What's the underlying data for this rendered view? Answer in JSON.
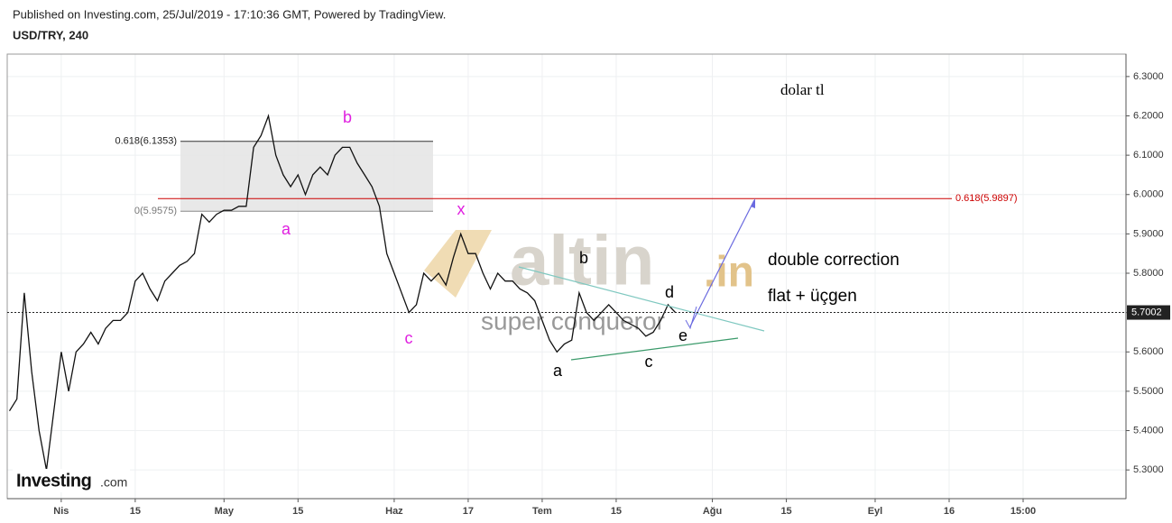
{
  "header": {
    "published": "Published on Investing.com, 25/Jul/2019 - 17:10:36 GMT, Powered by TradingView.",
    "symbol": "USD/TRY, 240"
  },
  "chart_data": {
    "type": "line",
    "color": "#111111",
    "grid": true,
    "x": [
      -7,
      -6,
      -5,
      -4,
      -3,
      -2,
      -1,
      0,
      1,
      2,
      3,
      4,
      5,
      6,
      7,
      8,
      9,
      10,
      11,
      12,
      13,
      14,
      15,
      16,
      17,
      18,
      19,
      20,
      21,
      22,
      23,
      24,
      25,
      26,
      27,
      28,
      29,
      30,
      31,
      32,
      33,
      34,
      35,
      36,
      37,
      38,
      39,
      40,
      41,
      42,
      43,
      44,
      45,
      46,
      47,
      48,
      49,
      50,
      51,
      52,
      53,
      54,
      55,
      56,
      57,
      58,
      59,
      60,
      61,
      62,
      63,
      64,
      65,
      66,
      67,
      68,
      69,
      70,
      71,
      72,
      73,
      74,
      75,
      76,
      77,
      78,
      79,
      80,
      81,
      82,
      83
    ],
    "values": [
      5.45,
      5.48,
      5.75,
      5.55,
      5.4,
      5.3,
      5.45,
      5.6,
      5.5,
      5.6,
      5.62,
      5.65,
      5.62,
      5.66,
      5.68,
      5.68,
      5.7,
      5.78,
      5.8,
      5.76,
      5.73,
      5.78,
      5.8,
      5.82,
      5.83,
      5.85,
      5.95,
      5.93,
      5.95,
      5.96,
      5.96,
      5.97,
      5.97,
      6.12,
      6.15,
      6.2,
      6.1,
      6.05,
      6.02,
      6.05,
      6.0,
      6.05,
      6.07,
      6.05,
      6.1,
      6.12,
      6.12,
      6.08,
      6.05,
      6.02,
      5.97,
      5.85,
      5.8,
      5.75,
      5.7,
      5.72,
      5.8,
      5.78,
      5.8,
      5.77,
      5.84,
      5.9,
      5.85,
      5.85,
      5.8,
      5.76,
      5.8,
      5.78,
      5.78,
      5.76,
      5.75,
      5.73,
      5.68,
      5.63,
      5.6,
      5.62,
      5.63,
      5.75,
      5.7,
      5.68,
      5.7,
      5.72,
      5.7,
      5.68,
      5.67,
      5.66,
      5.64,
      5.65,
      5.68,
      5.72,
      5.7
    ],
    "xlim": [
      -7.3,
      143.9
    ],
    "xticks": [
      {
        "value": 0,
        "label": "Nis"
      },
      {
        "value": 10,
        "label": "15"
      },
      {
        "value": 22,
        "label": "May"
      },
      {
        "value": 32,
        "label": "15"
      },
      {
        "value": 45,
        "label": "Haz"
      },
      {
        "value": 55,
        "label": "17"
      },
      {
        "value": 65,
        "label": "Tem"
      },
      {
        "value": 75,
        "label": "15"
      },
      {
        "value": 88,
        "label": "Ağu"
      },
      {
        "value": 98,
        "label": "15"
      },
      {
        "value": 110,
        "label": "Eyl"
      },
      {
        "value": 120,
        "label": "16"
      },
      {
        "value": 130,
        "label": "15:00"
      }
    ],
    "ylim": [
      5.227,
      6.357
    ],
    "yticks": [
      {
        "value": 5.3,
        "label": "5.3000"
      },
      {
        "value": 5.4,
        "label": "5.4000"
      },
      {
        "value": 5.5,
        "label": "5.5000"
      },
      {
        "value": 5.6,
        "label": "5.6000"
      },
      {
        "value": 5.7,
        "label": "5.7000"
      },
      {
        "value": 5.8,
        "label": "5.8000"
      },
      {
        "value": 5.9,
        "label": "5.9000"
      },
      {
        "value": 6.0,
        "label": "6.0000"
      },
      {
        "value": 6.1,
        "label": "6.1000"
      },
      {
        "value": 6.2,
        "label": "6.2000"
      },
      {
        "value": 6.3,
        "label": "6.3000"
      }
    ],
    "last_price": 5.7002,
    "fib_box": [
      {
        "value": 6.1353,
        "label": "0.618(6.1353)"
      },
      {
        "value": 5.9575,
        "label": "0(5.9575)"
      }
    ],
    "fib_line": {
      "value": 5.9897,
      "label": "0.618(5.9897)",
      "color": "#cc0000"
    },
    "wave_labels": [
      {
        "text": "a",
        "color": "#e020e0"
      },
      {
        "text": "b",
        "color": "#e020e0"
      },
      {
        "text": "c",
        "color": "#e020e0"
      },
      {
        "text": "x",
        "color": "#e020e0"
      },
      {
        "text": "b",
        "color": "#000000"
      },
      {
        "text": "a",
        "color": "#000000"
      },
      {
        "text": "c",
        "color": "#000000"
      },
      {
        "text": "d",
        "color": "#000000"
      },
      {
        "text": "e",
        "color": "#000000"
      }
    ],
    "annotations": [
      "dolar tl",
      "double correction",
      "flat + üçgen"
    ],
    "watermarks": [
      "altin",
      ".in",
      "super conqueror",
      "Investing",
      ".com"
    ]
  }
}
